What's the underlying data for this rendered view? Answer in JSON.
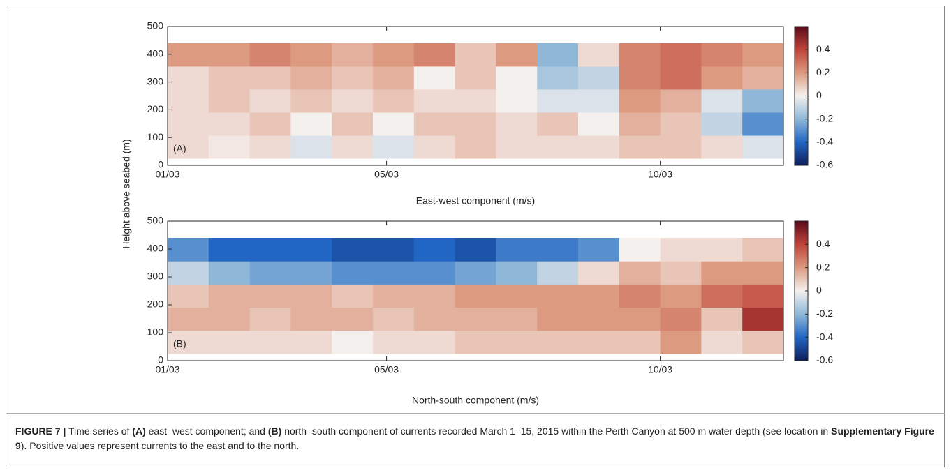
{
  "figure_ylabel": "Height above seabed (m)",
  "caption": {
    "label": "FIGURE 7 |",
    "t1": "Time series of",
    "b1": "(A)",
    "t2": "east–west component; and",
    "b2": "(B)",
    "t3": "north–south component of currents recorded March 1–15, 2015 within the Perth Canyon at 500 m water depth (see location in",
    "b3": "Supplementary Figure 9",
    "t4": "). Positive values represent currents to the east and to the north."
  },
  "chart_data": [
    {
      "type": "heatmap",
      "panel_label": "(A)",
      "xlabel": "East-west component (m/s)",
      "xlim": [
        0,
        11.25
      ],
      "xticks": [
        {
          "value": 0,
          "label": "01/03"
        },
        {
          "value": 4,
          "label": "05/03"
        },
        {
          "value": 9,
          "label": "10/03"
        }
      ],
      "ylim": [
        0,
        500
      ],
      "yticks": [
        0,
        100,
        200,
        300,
        400,
        500
      ],
      "xbins": [
        0,
        0.75,
        1.5,
        2.25,
        3,
        3.75,
        4.5,
        5.25,
        6,
        6.75,
        7.5,
        8.25,
        9,
        9.75,
        10.5,
        11.25
      ],
      "ybins": [
        25,
        108,
        191,
        274,
        357,
        440
      ],
      "z": [
        [
          0.05,
          0.02,
          0.05,
          -0.05,
          0.05,
          -0.05,
          0.05,
          0.1,
          0.05,
          0.05,
          0.05,
          0.1,
          0.1,
          0.05,
          -0.05
        ],
        [
          0.05,
          0.05,
          0.1,
          0,
          0.1,
          0,
          0.1,
          0.1,
          0.05,
          0.1,
          0,
          0.15,
          0.1,
          -0.1,
          -0.3
        ],
        [
          0.05,
          0.1,
          0.05,
          0.1,
          0.05,
          0.1,
          0.05,
          0.05,
          0,
          -0.05,
          -0.05,
          0.2,
          0.15,
          -0.05,
          -0.2
        ],
        [
          0.05,
          0.1,
          0.1,
          0.15,
          0.1,
          0.15,
          0,
          0.1,
          0,
          -0.15,
          -0.1,
          0.25,
          0.3,
          0.2,
          0.15
        ],
        [
          0.2,
          0.2,
          0.25,
          0.2,
          0.15,
          0.2,
          0.25,
          0.1,
          0.2,
          -0.2,
          0.05,
          0.25,
          0.3,
          0.25,
          0.2
        ]
      ],
      "clim": [
        -0.6,
        0.6
      ],
      "cticks": [
        -0.6,
        -0.4,
        -0.2,
        0,
        0.2,
        0.4
      ],
      "colormap": [
        "#0f1e5a",
        "#2166c5",
        "#8fb8d8",
        "#f4f0ee",
        "#dc9a80",
        "#c0443a",
        "#5a0a1a"
      ]
    },
    {
      "type": "heatmap",
      "panel_label": "(B)",
      "xlabel": "North-south component (m/s)",
      "xlim": [
        0,
        11.25
      ],
      "xticks": [
        {
          "value": 0,
          "label": "01/03"
        },
        {
          "value": 4,
          "label": "05/03"
        },
        {
          "value": 9,
          "label": "10/03"
        }
      ],
      "ylim": [
        0,
        500
      ],
      "yticks": [
        0,
        100,
        200,
        300,
        400,
        500
      ],
      "xbins": [
        0,
        0.75,
        1.5,
        2.25,
        3,
        3.75,
        4.5,
        5.25,
        6,
        6.75,
        7.5,
        8.25,
        9,
        9.75,
        10.5,
        11.25
      ],
      "ybins": [
        25,
        108,
        191,
        274,
        357,
        440
      ],
      "z": [
        [
          0.05,
          0.05,
          0.05,
          0.05,
          0,
          0.05,
          0.05,
          0.1,
          0.1,
          0.1,
          0.1,
          0.1,
          0.2,
          0.05,
          0.1
        ],
        [
          0.15,
          0.15,
          0.1,
          0.15,
          0.15,
          0.1,
          0.15,
          0.15,
          0.15,
          0.2,
          0.2,
          0.2,
          0.25,
          0.1,
          0.45
        ],
        [
          0.1,
          0.15,
          0.15,
          0.15,
          0.1,
          0.15,
          0.15,
          0.2,
          0.2,
          0.2,
          0.2,
          0.25,
          0.2,
          0.3,
          0.35
        ],
        [
          -0.1,
          -0.2,
          -0.25,
          -0.25,
          -0.3,
          -0.3,
          -0.3,
          -0.25,
          -0.2,
          -0.1,
          0.05,
          0.15,
          0.1,
          0.2,
          0.2
        ],
        [
          -0.3,
          -0.4,
          -0.4,
          -0.4,
          -0.45,
          -0.45,
          -0.4,
          -0.45,
          -0.35,
          -0.35,
          -0.3,
          0,
          0.05,
          0.05,
          0.1
        ]
      ],
      "clim": [
        -0.6,
        0.6
      ],
      "cticks": [
        -0.6,
        -0.4,
        -0.2,
        0,
        0.2,
        0.4
      ],
      "colormap": [
        "#0f1e5a",
        "#2166c5",
        "#8fb8d8",
        "#f4f0ee",
        "#dc9a80",
        "#c0443a",
        "#5a0a1a"
      ]
    }
  ]
}
